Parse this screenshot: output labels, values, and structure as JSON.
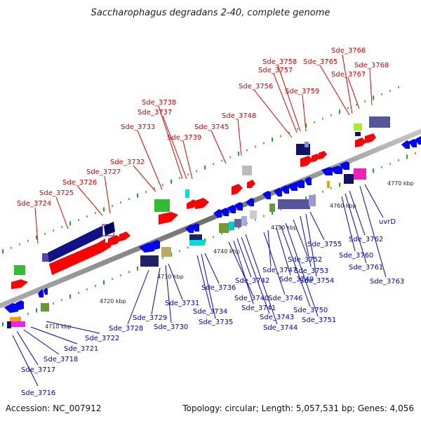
{
  "title": "Saccharophagus degradans 2-40, complete genome",
  "accession": "Accession: NC_007912",
  "topology": "Topology: circular; Length: 5,057,531 bp; Genes: 4,056",
  "colors": {
    "forward_label": "#dd0000",
    "reverse_label": "#0000cc",
    "backbone": "#8a8a8a",
    "forward_gene": "#ff0000",
    "reverse_gene": "#0000ff",
    "tick": "#2aa02a"
  },
  "kbp_labels": [
    "4710 kbp",
    "4720 kbp",
    "4730 kbp",
    "4740 kbp",
    "4750 kbp",
    "4760 kbp",
    "4770 kbp"
  ],
  "forward_labels": [
    "Sde_3724",
    "Sde_3725",
    "Sde_3726",
    "Sde_3727",
    "Sde_3732",
    "Sde_3733",
    "Sde_3737",
    "Sde_3738",
    "Sde_3739",
    "Sde_3745",
    "Sde_3748",
    "Sde_3756",
    "Sde_3757",
    "Sde_3758",
    "Sde_3759",
    "Sde_3765",
    "Sde_3766",
    "Sde_3767",
    "Sde_3768"
  ],
  "reverse_labels": [
    "Sde_3716",
    "Sde_3717",
    "Sde_3718",
    "Sde_3721",
    "Sde_3722",
    "Sde_3728",
    "Sde_3729",
    "Sde_3730",
    "Sde_3731",
    "Sde_3734",
    "Sde_3735",
    "Sde_3736",
    "Sde_3740",
    "Sde_3741",
    "Sde_3742",
    "Sde_3743",
    "Sde_3744",
    "Sde_3746",
    "Sde_3747",
    "Sde_3749",
    "Sde_3750",
    "Sde_3751",
    "Sde_3752",
    "Sde_3753",
    "Sde_3754",
    "Sde_3755",
    "Sde_3760",
    "Sde_3761",
    "Sde_3762",
    "Sde_3763",
    "uvrD"
  ]
}
